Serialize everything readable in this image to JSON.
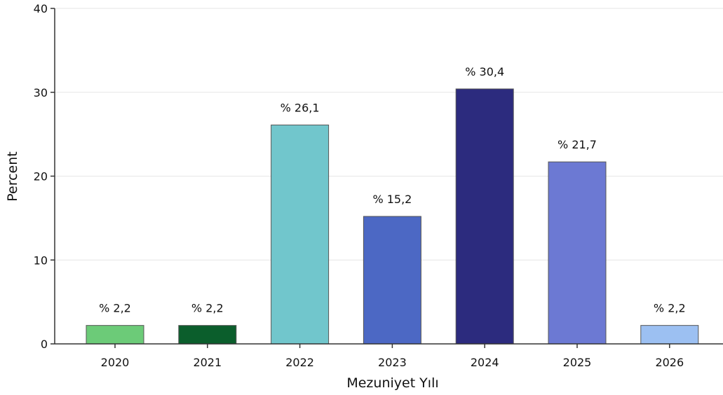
{
  "chart_data": {
    "type": "bar",
    "title": "",
    "xlabel": "Mezuniyet Yılı",
    "ylabel": "Percent",
    "categories": [
      "2020",
      "2021",
      "2022",
      "2023",
      "2024",
      "2025",
      "2026"
    ],
    "values": [
      2.2,
      2.2,
      26.1,
      15.2,
      30.4,
      21.7,
      2.2
    ],
    "data_labels": [
      "% 2,2",
      "% 2,2",
      "% 26,1",
      "% 15,2",
      "% 30,4",
      "% 21,7",
      "% 2,2"
    ],
    "colors": [
      "#6ccb78",
      "#0b5e2c",
      "#71c6cc",
      "#4c68c4",
      "#2c2b7e",
      "#6c79d3",
      "#9cc0f2"
    ],
    "ylim": [
      0,
      40
    ],
    "yticks": [
      "0",
      "10",
      "20",
      "30",
      "40"
    ],
    "grid": true,
    "legend": "none"
  }
}
